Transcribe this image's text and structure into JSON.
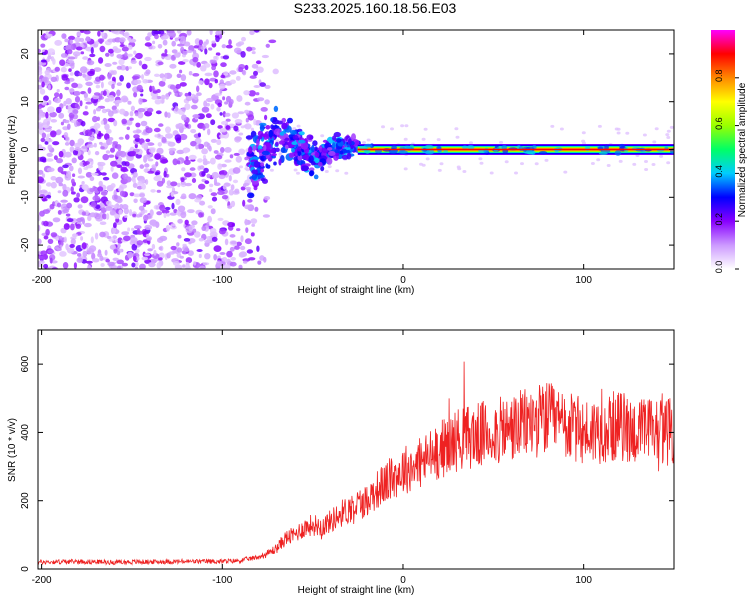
{
  "figure_title": "S233.2025.160.18.56.E03",
  "chart_data": [
    {
      "type": "heatmap",
      "xlabel": "Height of straight line (km)",
      "ylabel": "Frequency (Hz)",
      "xlim": [
        -202,
        150
      ],
      "ylim": [
        -25,
        25
      ],
      "x_ticks": [
        -200,
        -100,
        0,
        100
      ],
      "y_ticks": [
        -20,
        -10,
        0,
        10,
        20
      ],
      "colorbar": {
        "label": "Normalized spectral amplitude",
        "range": [
          0,
          1
        ],
        "ticks": [
          "0.0",
          "0.2",
          "0.4",
          "0.6",
          "0.8"
        ],
        "colors": [
          "#ffffff",
          "#cc99ff",
          "#8800ff",
          "#0000ff",
          "#00ccff",
          "#00ff66",
          "#99ff00",
          "#ffff00",
          "#ff8800",
          "#ff0000",
          "#ff00ff"
        ]
      },
      "regions": [
        {
          "name": "noise",
          "x_range": [
            -202,
            -75
          ],
          "freq_range": [
            -25,
            25
          ],
          "amplitude": 0.15
        },
        {
          "name": "transition",
          "x_range": [
            -85,
            -25
          ],
          "freq_range": [
            -5,
            7
          ],
          "amplitude": 0.3
        },
        {
          "name": "signal_line",
          "x_range": [
            -25,
            150
          ],
          "frequency": 0,
          "amplitude": 0.9
        }
      ]
    },
    {
      "type": "line",
      "xlabel": "Height of straight line (km)",
      "ylabel": "SNR (10 * v/v)",
      "xlim": [
        -202,
        150
      ],
      "ylim": [
        0,
        700
      ],
      "x_ticks": [
        -200,
        -100,
        0,
        100
      ],
      "y_ticks": [
        0,
        200,
        400,
        600
      ],
      "series": [
        {
          "color": "#ee2222",
          "x": [
            -202,
            -180,
            -160,
            -140,
            -120,
            -100,
            -90,
            -80,
            -75,
            -70,
            -65,
            -60,
            -55,
            -50,
            -45,
            -40,
            -35,
            -30,
            -25,
            -20,
            -15,
            -10,
            -5,
            0,
            5,
            10,
            15,
            20,
            25,
            30,
            40,
            50,
            60,
            70,
            80,
            90,
            100,
            110,
            120,
            130,
            140,
            150
          ],
          "values": [
            20,
            22,
            20,
            21,
            22,
            22,
            25,
            35,
            45,
            60,
            90,
            100,
            120,
            130,
            125,
            140,
            160,
            175,
            190,
            200,
            230,
            250,
            270,
            290,
            300,
            310,
            330,
            350,
            360,
            380,
            390,
            400,
            410,
            430,
            440,
            420,
            400,
            410,
            420,
            400,
            410,
            400
          ]
        }
      ]
    }
  ]
}
